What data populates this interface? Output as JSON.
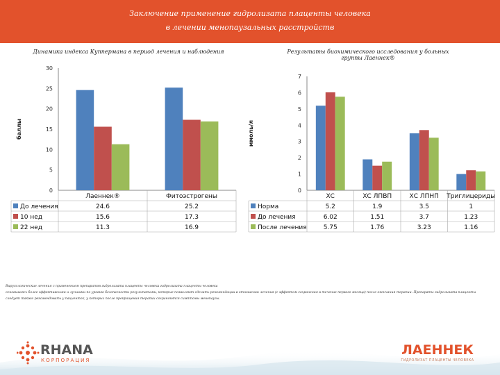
{
  "header": {
    "title_line1": "Заключение применение гидролизата плаценты человека",
    "title_line2": "в лечении менопаузальных расстройств",
    "color": "#e2522c"
  },
  "colors": {
    "series1": "#4f81bd",
    "series2": "#c0504d",
    "series3": "#9bbb59",
    "accent": "#e2522c"
  },
  "chart_data": [
    {
      "type": "bar",
      "title": "Динамика индекса Куппермана в период лечения и наблюдения",
      "ylabel": "баллы",
      "ylim": [
        0,
        30
      ],
      "yticks": [
        "0",
        "5",
        "10",
        "15",
        "20",
        "25",
        "30"
      ],
      "categories": [
        "Лаеннек®",
        "Фитоэстрогены"
      ],
      "series": [
        {
          "name": "До лечения",
          "values": [
            24.6,
            25.2
          ],
          "labels": [
            "24.6",
            "25.2"
          ]
        },
        {
          "name": "10 нед",
          "values": [
            15.6,
            17.3
          ],
          "labels": [
            "15.6",
            "17.3"
          ]
        },
        {
          "name": "22 нед",
          "values": [
            11.3,
            16.9
          ],
          "labels": [
            "11.3",
            "16.9"
          ]
        }
      ],
      "grid": false,
      "legend": "data-table"
    },
    {
      "type": "bar",
      "title": "Результаты биохимического исследования у больных группы Лаеннек®",
      "ylabel": "ммоль/л",
      "ylim": [
        0,
        7
      ],
      "yticks": [
        "0",
        "1",
        "2",
        "3",
        "4",
        "5",
        "6",
        "7"
      ],
      "categories": [
        "ХС",
        "ХС ЛПВП",
        "ХС ЛПНП",
        "Триглицериды"
      ],
      "series": [
        {
          "name": "Норма",
          "values": [
            5.2,
            1.9,
            3.5,
            1
          ],
          "labels": [
            "5.2",
            "1.9",
            "3.5",
            "1"
          ]
        },
        {
          "name": "До лечения",
          "values": [
            6.02,
            1.51,
            3.7,
            1.23
          ],
          "labels": [
            "6.02",
            "1.51",
            "3.7",
            "1.23"
          ]
        },
        {
          "name": "После лечения",
          "values": [
            5.75,
            1.76,
            3.23,
            1.16
          ],
          "labels": [
            "5.75",
            "1.76",
            "3.23",
            "1.16"
          ]
        }
      ],
      "grid": false,
      "legend": "data-table"
    }
  ],
  "notes": [
    "Вирусологические лечения с применением препаратов гидролизата плаценты человека гидролизата плаценты человека",
    "основываясь более эффективными и лучшими по уровню безопасности результатами, которые позволяют сделать рекомендации в отношении лечения (с эффектом сохранения в течение первого месяца) после окончания терапии. Препараты гидролизата плаценты",
    "следует также рекомендовать у пациенток, у которых после прекращения терапии сохраняются симптомы менопаузы."
  ],
  "logos": {
    "left_name": "RHANA",
    "left_sub": "КОРПОРАЦИЯ",
    "right_name": "ЛАЕННЕК",
    "right_sub": "ГИДРОЛИЗАТ ПЛАЦЕНТЫ ЧЕЛОВЕКА"
  }
}
